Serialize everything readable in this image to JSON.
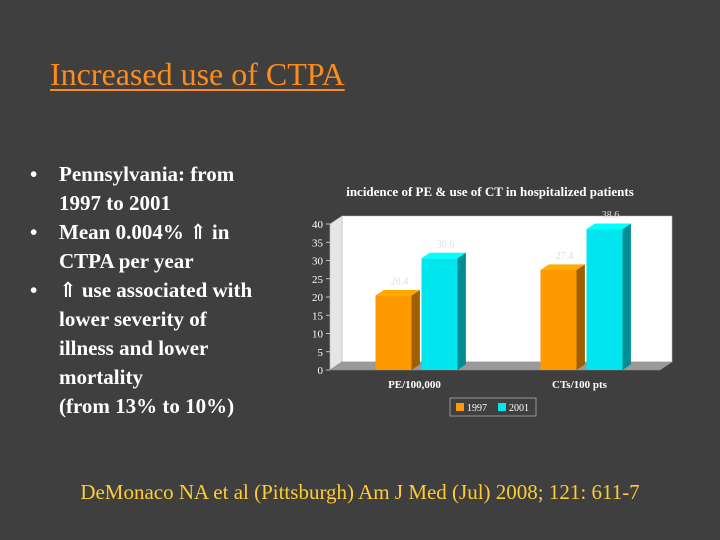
{
  "slide": {
    "title": "Increased use of CTPA",
    "bullets": [
      {
        "marker": "•",
        "text": "Pennsylvania: from\n1997 to 2001"
      },
      {
        "marker": "•",
        "text": "Mean 0.004% ⇑ in\nCTPA per year"
      },
      {
        "marker": "•",
        "text": "⇑ use associated with\nlower severity of\nillness and lower\nmortality\n(from 13% to 10%)"
      }
    ],
    "citation": "DeMonaco NA et al (Pittsburgh) Am J Med (Jul) 2008; 121: 611-7"
  },
  "colors": {
    "background": "#3f3f3f",
    "title": "#ff8c1a",
    "citation": "#ffcc33",
    "series_1997": "#ff9900",
    "series_2001": "#00e5ee"
  },
  "chart_data": {
    "type": "bar",
    "title": "incidence of PE & use of CT in hospitalized patients",
    "categories": [
      "PE/100,000",
      "CTs/100 pts"
    ],
    "series": [
      {
        "name": "1997",
        "values": [
          20.4,
          27.4
        ]
      },
      {
        "name": "2001",
        "values": [
          30.6,
          38.6
        ]
      }
    ],
    "data_labels": [
      [
        "20.4",
        "27.4"
      ],
      [
        "30.6",
        "38.6"
      ]
    ],
    "ylim": [
      0,
      40
    ],
    "yticks": [
      0,
      5,
      10,
      15,
      20,
      25,
      30,
      35,
      40
    ],
    "grid": false,
    "legend": "bottom-center",
    "style": "3d"
  }
}
